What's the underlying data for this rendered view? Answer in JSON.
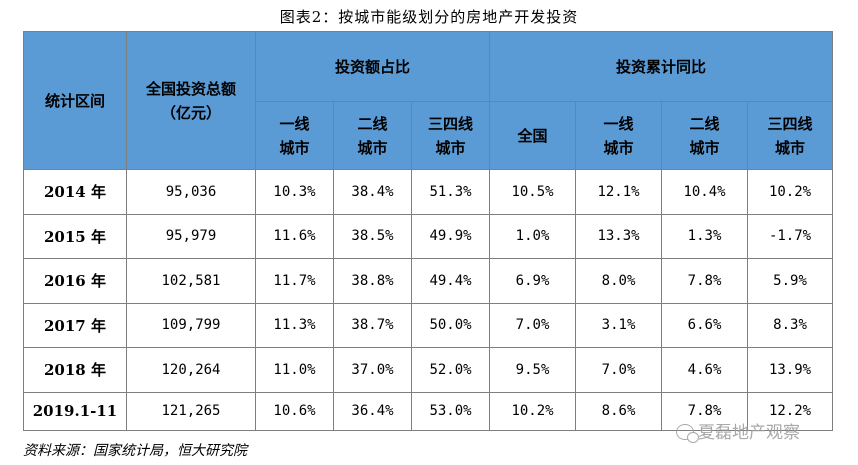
{
  "title": "图表2：按城市能级划分的房地产开发投资",
  "headers": {
    "period": "统计区间",
    "total_line1": "全国投资总额",
    "total_line2": "（亿元）",
    "share_group": "投资额占比",
    "growth_group": "投资累计同比",
    "share_cols": [
      {
        "l1": "一线",
        "l2": "城市"
      },
      {
        "l1": "二线",
        "l2": "城市"
      },
      {
        "l1": "三四线",
        "l2": "城市"
      }
    ],
    "growth_cols": [
      {
        "l1": "全国",
        "l2": ""
      },
      {
        "l1": "一线",
        "l2": "城市"
      },
      {
        "l1": "二线",
        "l2": "城市"
      },
      {
        "l1": "三四线",
        "l2": "城市"
      }
    ]
  },
  "rows": [
    {
      "period": "2014 年",
      "total": "95,036",
      "share": [
        "10.3%",
        "38.4%",
        "51.3%"
      ],
      "growth": [
        "10.5%",
        "12.1%",
        "10.4%",
        "10.2%"
      ]
    },
    {
      "period": "2015 年",
      "total": "95,979",
      "share": [
        "11.6%",
        "38.5%",
        "49.9%"
      ],
      "growth": [
        "1.0%",
        "13.3%",
        "1.3%",
        "-1.7%"
      ]
    },
    {
      "period": "2016 年",
      "total": "102,581",
      "share": [
        "11.7%",
        "38.8%",
        "49.4%"
      ],
      "growth": [
        "6.9%",
        "8.0%",
        "7.8%",
        "5.9%"
      ]
    },
    {
      "period": "2017 年",
      "total": "109,799",
      "share": [
        "11.3%",
        "38.7%",
        "50.0%"
      ],
      "growth": [
        "7.0%",
        "3.1%",
        "6.6%",
        "8.3%"
      ]
    },
    {
      "period": "2018 年",
      "total": "120,264",
      "share": [
        "11.0%",
        "37.0%",
        "52.0%"
      ],
      "growth": [
        "9.5%",
        "7.0%",
        "4.6%",
        "13.9%"
      ]
    },
    {
      "period": "2019.1-11",
      "total": "121,265",
      "share": [
        "10.6%",
        "36.4%",
        "53.0%"
      ],
      "growth": [
        "10.2%",
        "8.6%",
        "7.8%",
        "12.2%"
      ]
    }
  ],
  "source": "资料来源：国家统计局，恒大研究院",
  "watermark": "夏磊地产观察"
}
